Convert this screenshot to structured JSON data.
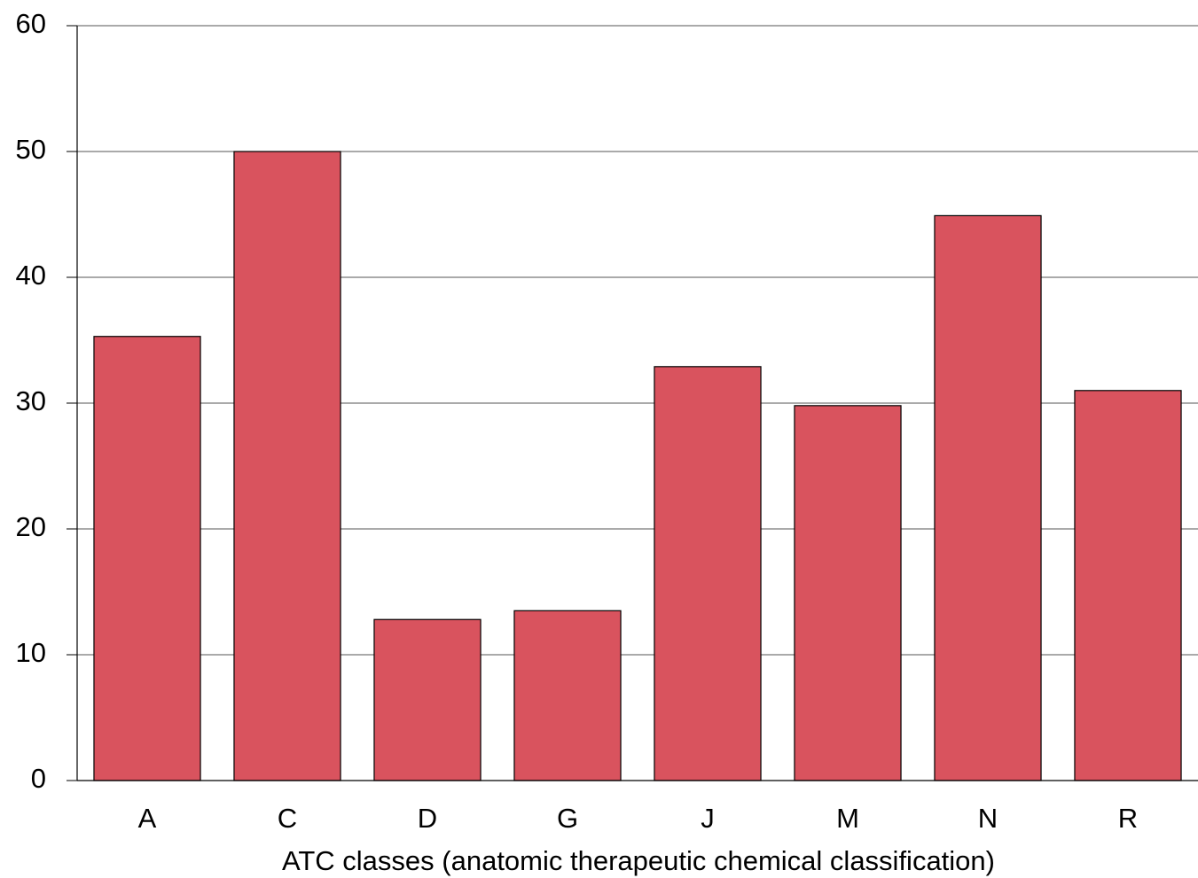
{
  "chart_data": {
    "type": "bar",
    "x_label": "ATC classes (anatomic therapeutic chemical classification)",
    "categories": [
      "A",
      "C",
      "D",
      "G",
      "J",
      "M",
      "N",
      "R"
    ],
    "values": [
      35.3,
      50.0,
      12.8,
      13.5,
      32.9,
      29.8,
      44.9,
      31.0
    ],
    "color": "#d9535e",
    "ylim": [
      0,
      60
    ],
    "yticks": [
      0,
      10,
      20,
      30,
      40,
      50,
      60
    ],
    "grid": true
  }
}
